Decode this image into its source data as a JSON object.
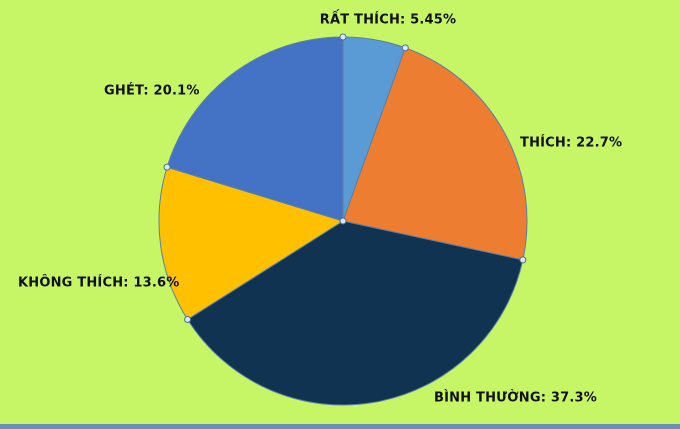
{
  "chart_data": {
    "type": "pie",
    "values": [
      5.45,
      22.7,
      37.3,
      13.6,
      20.1
    ],
    "value_labels": [
      "RẤT THÍCH: 5.45%",
      "THÍCH: 22.7%",
      "BÌNH THƯỜNG: 37.3%",
      "KHÔNG THÍCH: 13.6%",
      "GHÉT: 20.1%"
    ],
    "colors": [
      "#5b9bd5",
      "#ed7d31",
      "#0f3350",
      "#ffc000",
      "#4472c4"
    ]
  }
}
